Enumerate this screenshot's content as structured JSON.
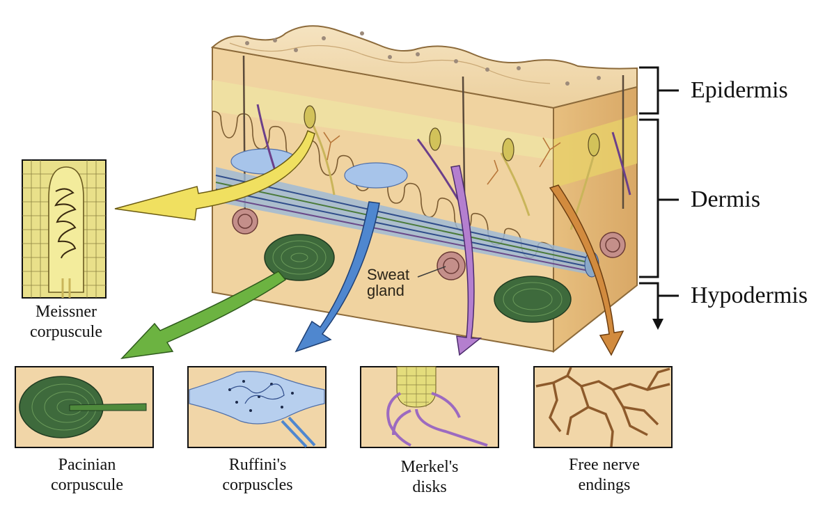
{
  "layers": {
    "epidermis": "Epidermis",
    "dermis": "Dermis",
    "hypodermis": "Hypodermis"
  },
  "inner_label": {
    "line1": "Sweat",
    "line2": "gland"
  },
  "receptors": {
    "meissner": {
      "line1": "Meissner",
      "line2": "corpuscule"
    },
    "pacinian": {
      "line1": "Pacinian",
      "line2": "corpuscule"
    },
    "ruffini": {
      "line1": "Ruffini's",
      "line2": "corpuscles"
    },
    "merkel": {
      "line1": "Merkel's",
      "line2": "disks"
    },
    "free": {
      "line1": "Free nerve",
      "line2": "endings"
    }
  },
  "colors": {
    "skin": "#f1d5a4",
    "epidermis": "#f0dfa5",
    "meissner_arrow": "#f0e060",
    "pacinian_arrow": "#6cb341",
    "ruffini_arrow": "#4f87cf",
    "merkel_arrow": "#b47fcf",
    "free_arrow": "#d28b3e",
    "pacinian": "#3e6a3c",
    "nerve_brown": "#8d5a2b"
  }
}
